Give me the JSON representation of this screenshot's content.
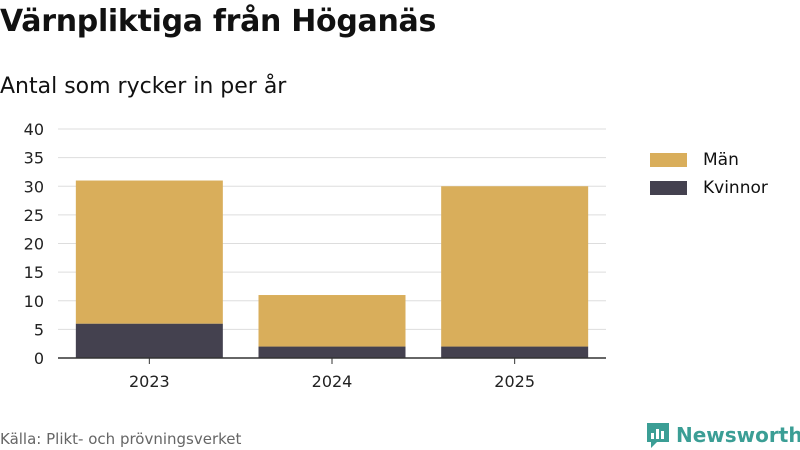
{
  "title": "Värnpliktiga från Höganäs",
  "subtitle": "Antal som rycker in per år",
  "source": "Källa: Plikt- och prövningsverket",
  "brand": {
    "name": "Newsworthy",
    "icon": "newsworthy-logo-icon",
    "color": "#3b9e95"
  },
  "legend": [
    {
      "label": "Män",
      "color": "#d9ae5b"
    },
    {
      "label": "Kvinnor",
      "color": "#44414f"
    }
  ],
  "chart_data": {
    "type": "bar",
    "stacked": true,
    "categories": [
      "2023",
      "2024",
      "2025"
    ],
    "series": [
      {
        "name": "Kvinnor",
        "values": [
          6,
          2,
          2
        ],
        "color": "#44414f"
      },
      {
        "name": "Män",
        "values": [
          25,
          9,
          28
        ],
        "color": "#d9ae5b"
      }
    ],
    "yticks": [
      "0",
      "5",
      "10",
      "15",
      "20",
      "25",
      "30",
      "35",
      "40"
    ],
    "ylim": [
      0,
      40
    ],
    "grid": true,
    "legend_position": "right"
  }
}
